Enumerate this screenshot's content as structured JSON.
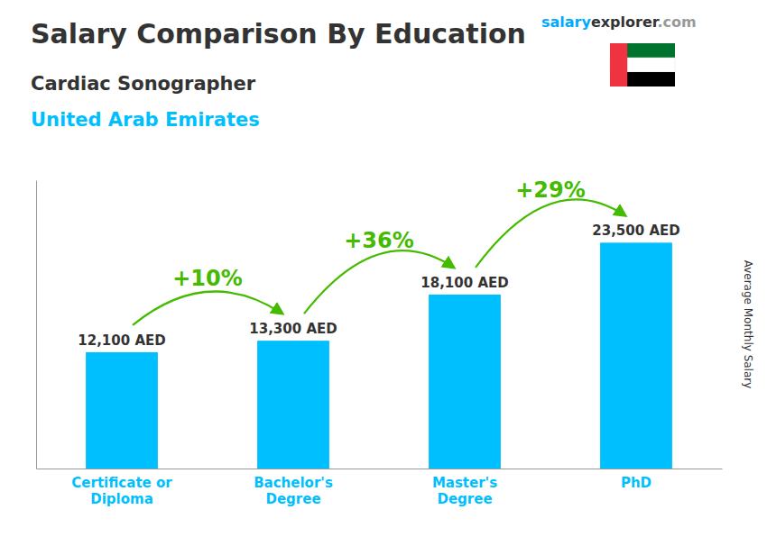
{
  "chart_data": {
    "type": "bar",
    "title": "Salary Comparison By Education",
    "subtitle": "Cardiac Sonographer",
    "subtitle2": "United Arab Emirates",
    "ylabel": "Average Monthly Salary",
    "categories": [
      "Certificate or\nDiploma",
      "Bachelor's\nDegree",
      "Master's\nDegree",
      "PhD"
    ],
    "values": [
      12100,
      13300,
      18100,
      23500
    ],
    "value_labels": [
      "12,100 AED",
      "13,300 AED",
      "18,100 AED",
      "23,500 AED"
    ],
    "data_labels": true,
    "annotations": [
      "+10%",
      "+36%",
      "+29%"
    ],
    "brand": [
      "salary",
      "explorer",
      ".com"
    ],
    "color": "#00BFFF",
    "ylim": [
      0,
      30000
    ],
    "tick_labels": "x"
  }
}
